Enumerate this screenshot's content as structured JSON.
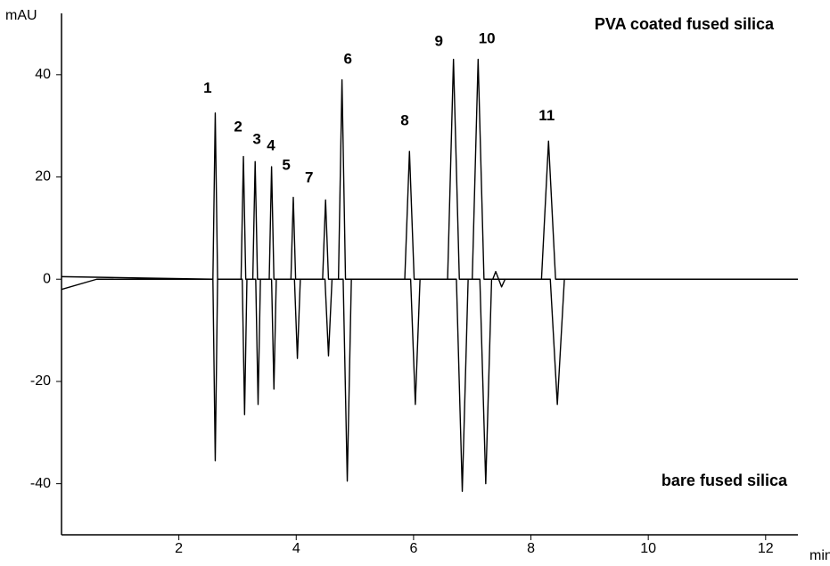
{
  "chart_data": {
    "type": "line",
    "y_label": "mAU",
    "x_label": "min",
    "xlim": [
      0,
      12.55
    ],
    "ylim": [
      -50,
      52
    ],
    "xticks": [
      2,
      4,
      6,
      8,
      10,
      12
    ],
    "yticks": [
      -40,
      -20,
      0,
      20,
      40
    ],
    "series": [
      {
        "name": "PVA coated fused silica",
        "color": "#000000",
        "x": [
          0,
          2.58,
          2.62,
          2.66,
          3.06,
          3.1,
          3.14,
          3.26,
          3.3,
          3.34,
          3.54,
          3.58,
          3.62,
          3.91,
          3.95,
          3.99,
          4.45,
          4.5,
          4.55,
          4.72,
          4.78,
          4.84,
          5.85,
          5.93,
          6.01,
          6.58,
          6.68,
          6.78,
          7.0,
          7.1,
          7.2,
          7.35,
          7.4,
          7.45,
          8.18,
          8.3,
          8.42,
          12.55
        ],
        "values": [
          0.5,
          0,
          32.5,
          0,
          0,
          24,
          0,
          0,
          23,
          0,
          0,
          22,
          0,
          0,
          16,
          0,
          0,
          15.5,
          0,
          0,
          39,
          0,
          0,
          25,
          0,
          0,
          43,
          0,
          0,
          43,
          0,
          0,
          1.5,
          0,
          0,
          27,
          0,
          0
        ]
      },
      {
        "name": "bare fused silica",
        "color": "#000000",
        "x": [
          0,
          0.6,
          2.58,
          2.62,
          2.66,
          3.08,
          3.12,
          3.16,
          3.31,
          3.35,
          3.39,
          3.58,
          3.62,
          3.66,
          3.97,
          4.02,
          4.07,
          4.49,
          4.55,
          4.61,
          4.8,
          4.87,
          4.94,
          5.95,
          6.03,
          6.11,
          6.73,
          6.83,
          6.93,
          7.13,
          7.23,
          7.33,
          7.45,
          7.5,
          7.56,
          8.33,
          8.45,
          8.57,
          12.55
        ],
        "values": [
          -2,
          0,
          0,
          -35.5,
          0,
          0,
          -26.5,
          0,
          0,
          -24.5,
          0,
          0,
          -21.5,
          0,
          0,
          -15.5,
          0,
          0,
          -15,
          0,
          0,
          -39.5,
          0,
          0,
          -24.5,
          0,
          0,
          -41.5,
          0,
          0,
          -40,
          0,
          0,
          -1.5,
          0,
          0,
          -24.5,
          0,
          0
        ]
      }
    ],
    "annotations": [
      {
        "text": "1",
        "x": 2.49,
        "y": 37.3
      },
      {
        "text": "2",
        "x": 3.01,
        "y": 29.7
      },
      {
        "text": "3",
        "x": 3.33,
        "y": 27.2
      },
      {
        "text": "4",
        "x": 3.57,
        "y": 26
      },
      {
        "text": "5",
        "x": 3.83,
        "y": 22.2
      },
      {
        "text": "7",
        "x": 4.22,
        "y": 19.7
      },
      {
        "text": "6",
        "x": 4.88,
        "y": 42.9
      },
      {
        "text": "8",
        "x": 5.85,
        "y": 30.9
      },
      {
        "text": "9",
        "x": 6.43,
        "y": 46.4
      },
      {
        "text": "10",
        "x": 7.25,
        "y": 46.9
      },
      {
        "text": "11",
        "x": 8.27,
        "y": 31.9
      }
    ]
  }
}
